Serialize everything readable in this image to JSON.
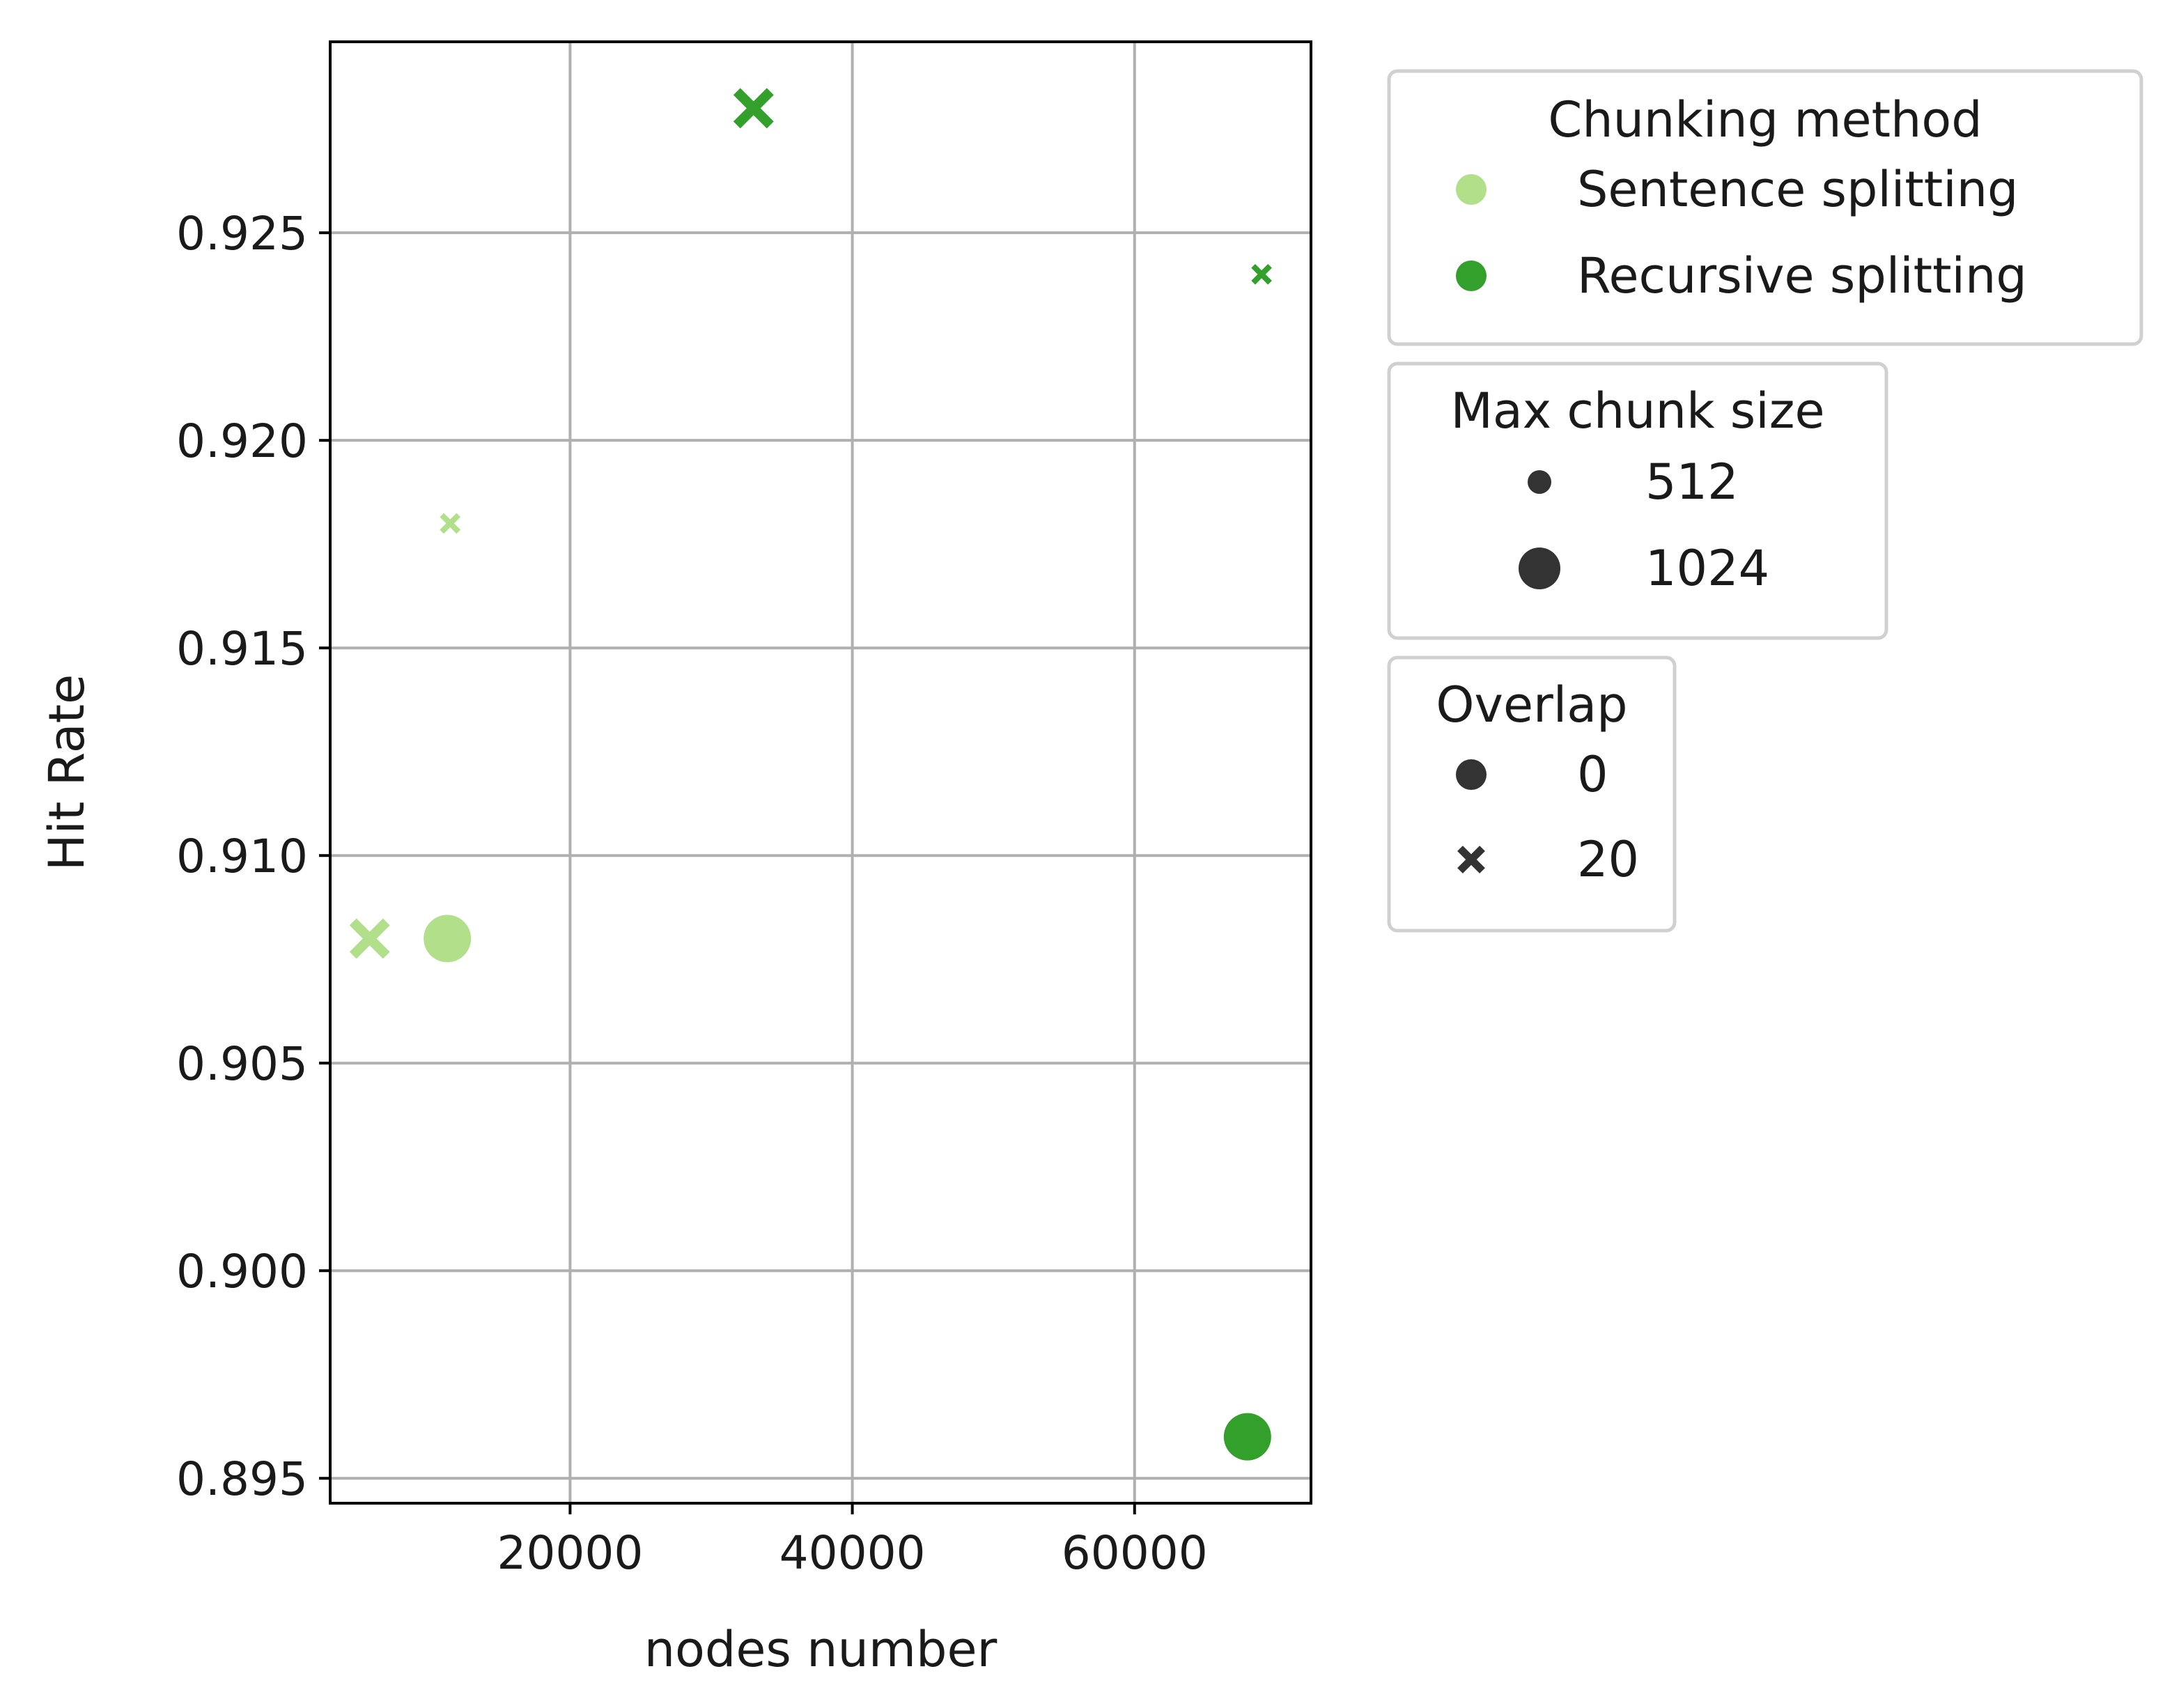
{
  "chart_data": {
    "type": "scatter",
    "xlabel": "nodes number",
    "ylabel": "Hit Rate",
    "xlim": [
      3000,
      72500
    ],
    "ylim": [
      0.8944,
      0.9296
    ],
    "xticks": [
      20000,
      40000,
      60000
    ],
    "xtick_labels": [
      "20000",
      "40000",
      "60000"
    ],
    "yticks": [
      0.895,
      0.9,
      0.905,
      0.91,
      0.915,
      0.92,
      0.925
    ],
    "ytick_labels": [
      "0.895",
      "0.900",
      "0.905",
      "0.910",
      "0.915",
      "0.920",
      "0.925"
    ],
    "grid": true,
    "legend_placement": "outside-right",
    "points": [
      {
        "method": "Sentence splitting",
        "size": 512,
        "overlap": 20,
        "x": 11500,
        "y": 0.918
      },
      {
        "method": "Sentence splitting",
        "size": 1024,
        "overlap": 20,
        "x": 5800,
        "y": 0.908
      },
      {
        "method": "Sentence splitting",
        "size": 1024,
        "overlap": 0,
        "x": 11300,
        "y": 0.908
      },
      {
        "method": "Recursive splitting",
        "size": 1024,
        "overlap": 20,
        "x": 33000,
        "y": 0.928
      },
      {
        "method": "Recursive splitting",
        "size": 512,
        "overlap": 20,
        "x": 69000,
        "y": 0.924
      },
      {
        "method": "Recursive splitting",
        "size": 1024,
        "overlap": 0,
        "x": 68000,
        "y": 0.896
      }
    ],
    "legends": [
      {
        "title": "Chunking method",
        "items": [
          {
            "label": "Sentence splitting",
            "marker": "circle",
            "color": "#b2df8a"
          },
          {
            "label": "Recursive splitting",
            "marker": "circle",
            "color": "#33a02c"
          }
        ]
      },
      {
        "title": "Max chunk size",
        "items": [
          {
            "label": "512",
            "marker": "circle-small",
            "color": "#333333"
          },
          {
            "label": "1024",
            "marker": "circle-large",
            "color": "#333333"
          }
        ]
      },
      {
        "title": "Overlap",
        "items": [
          {
            "label": "0",
            "marker": "circle",
            "color": "#333333"
          },
          {
            "label": "20",
            "marker": "x",
            "color": "#333333"
          }
        ]
      }
    ],
    "colors": {
      "Sentence splitting": "#b2df8a",
      "Recursive splitting": "#33a02c"
    }
  }
}
